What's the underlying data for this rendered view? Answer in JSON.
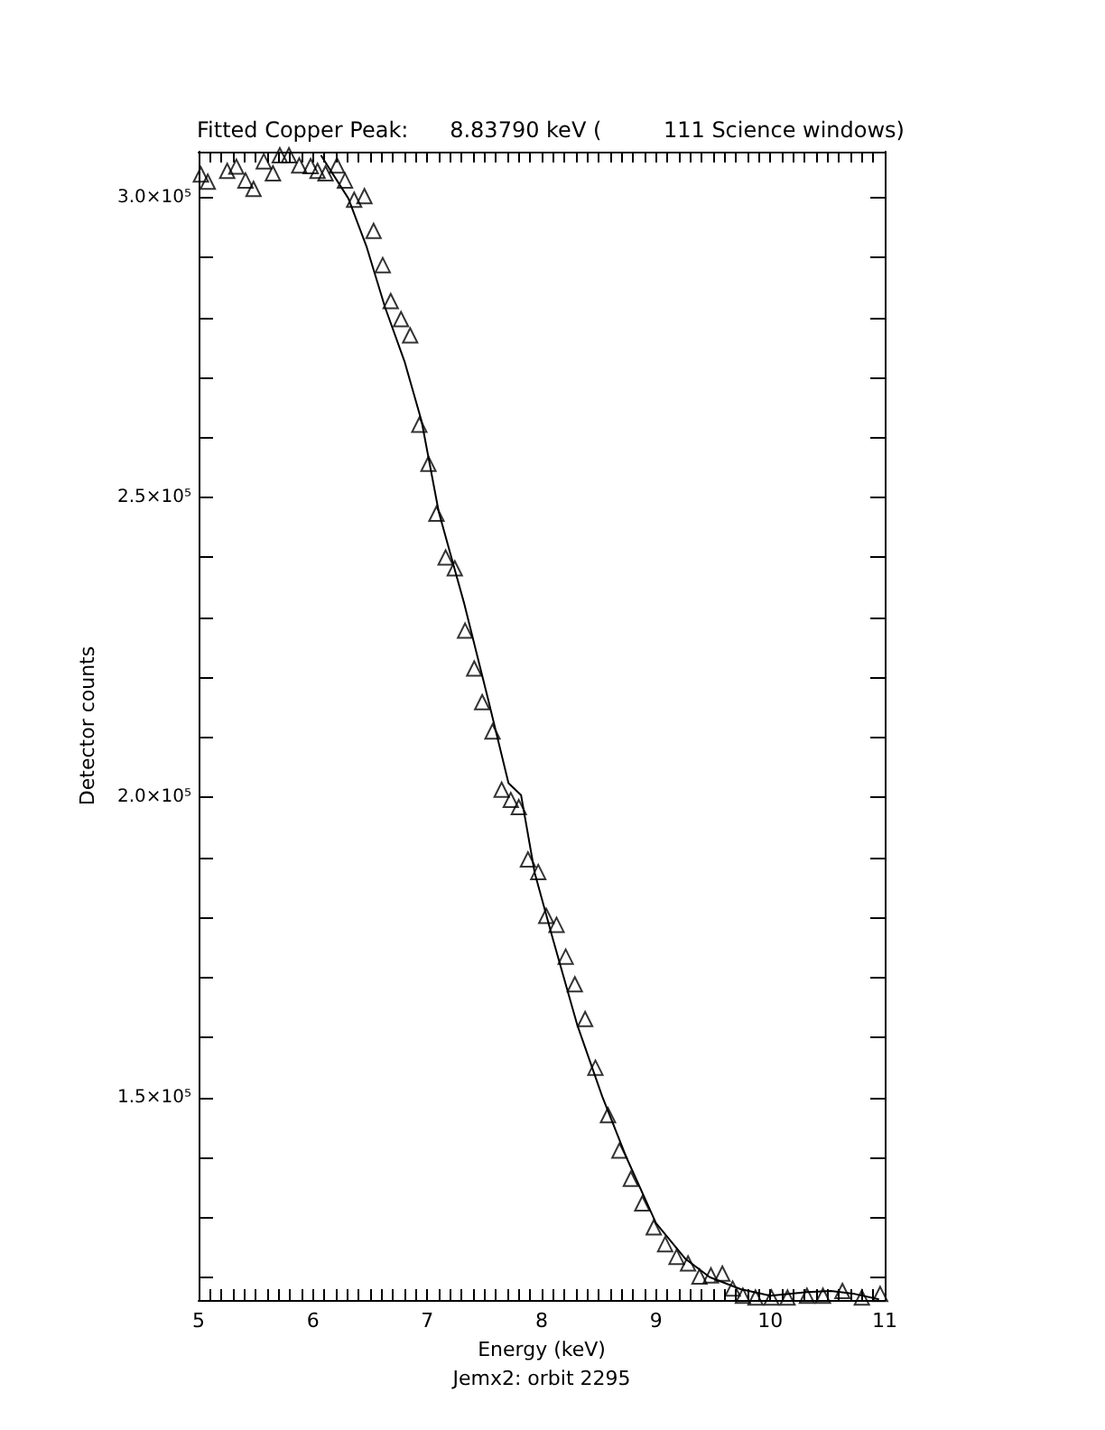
{
  "chart_data": {
    "type": "scatter",
    "title": "Fitted Copper Peak:      8.83790 keV (         111 Science windows)",
    "xlabel": "Energy (keV)",
    "ylabel": "Detector counts",
    "annotations": [
      "Jemx2: orbit 2295"
    ],
    "xlim": [
      5,
      11
    ],
    "ylim": [
      116300,
      307600
    ],
    "grid": false,
    "xticks": [
      5,
      {
        "value": 5.1,
        "label": null
      },
      {
        "value": 5.2,
        "label": null
      },
      {
        "value": 5.3,
        "label": null
      },
      {
        "value": 5.4,
        "label": null
      },
      {
        "value": 5.5,
        "label": null
      },
      {
        "value": 5.6,
        "label": null
      },
      {
        "value": 5.7,
        "label": null
      },
      {
        "value": 5.8,
        "label": null
      },
      {
        "value": 5.9,
        "label": null
      },
      6,
      {
        "value": 6.1,
        "label": null
      },
      {
        "value": 6.2,
        "label": null
      },
      {
        "value": 6.3,
        "label": null
      },
      {
        "value": 6.4,
        "label": null
      },
      {
        "value": 6.5,
        "label": null
      },
      {
        "value": 6.6,
        "label": null
      },
      {
        "value": 6.7,
        "label": null
      },
      {
        "value": 6.8,
        "label": null
      },
      {
        "value": 6.9,
        "label": null
      },
      7,
      {
        "value": 7.1,
        "label": null
      },
      {
        "value": 7.2,
        "label": null
      },
      {
        "value": 7.3,
        "label": null
      },
      {
        "value": 7.4,
        "label": null
      },
      {
        "value": 7.5,
        "label": null
      },
      {
        "value": 7.6,
        "label": null
      },
      {
        "value": 7.7,
        "label": null
      },
      {
        "value": 7.8,
        "label": null
      },
      {
        "value": 7.9,
        "label": null
      },
      8,
      {
        "value": 8.1,
        "label": null
      },
      {
        "value": 8.2,
        "label": null
      },
      {
        "value": 8.3,
        "label": null
      },
      {
        "value": 8.4,
        "label": null
      },
      {
        "value": 8.5,
        "label": null
      },
      {
        "value": 8.6,
        "label": null
      },
      {
        "value": 8.7,
        "label": null
      },
      {
        "value": 8.8,
        "label": null
      },
      {
        "value": 8.9,
        "label": null
      },
      9,
      {
        "value": 9.1,
        "label": null
      },
      {
        "value": 9.2,
        "label": null
      },
      {
        "value": 9.3,
        "label": null
      },
      {
        "value": 9.4,
        "label": null
      },
      {
        "value": 9.5,
        "label": null
      },
      {
        "value": 9.6,
        "label": null
      },
      {
        "value": 9.7,
        "label": null
      },
      {
        "value": 9.8,
        "label": null
      },
      {
        "value": 9.9,
        "label": null
      },
      10,
      {
        "value": 10.1,
        "label": null
      },
      {
        "value": 10.2,
        "label": null
      },
      {
        "value": 10.3,
        "label": null
      },
      {
        "value": 10.4,
        "label": null
      },
      {
        "value": 10.5,
        "label": null
      },
      {
        "value": 10.6,
        "label": null
      },
      {
        "value": 10.7,
        "label": null
      },
      {
        "value": 10.8,
        "label": null
      },
      {
        "value": 10.9,
        "label": null
      },
      11
    ],
    "yticks": [
      {
        "value": 120000,
        "label": null
      },
      {
        "value": 130000,
        "label": null
      },
      {
        "value": 140000,
        "label": null
      },
      {
        "value": 150000,
        "label": "1.5×10⁵"
      },
      {
        "value": 160000,
        "label": null
      },
      {
        "value": 170000,
        "label": null
      },
      {
        "value": 180000,
        "label": null
      },
      {
        "value": 190000,
        "label": null
      },
      {
        "value": 200000,
        "label": "2.0×10⁵"
      },
      {
        "value": 210000,
        "label": null
      },
      {
        "value": 220000,
        "label": null
      },
      {
        "value": 230000,
        "label": null
      },
      {
        "value": 240000,
        "label": null
      },
      {
        "value": 250000,
        "label": "2.5×10⁵"
      },
      {
        "value": 260000,
        "label": null
      },
      {
        "value": 270000,
        "label": null
      },
      {
        "value": 280000,
        "label": null
      },
      {
        "value": 290000,
        "label": null
      },
      {
        "value": 300000,
        "label": "3.0×10⁵"
      }
    ],
    "series": [
      {
        "marker": "triangle",
        "color": "#000000",
        "x": [
          5.02,
          5.08,
          5.25,
          5.33,
          5.41,
          5.48,
          5.57,
          5.65,
          5.71,
          5.79,
          5.88,
          5.98,
          6.04,
          6.11,
          6.21,
          6.28,
          6.36,
          6.45,
          6.53,
          6.61,
          6.68,
          6.77,
          6.85,
          6.93,
          7.01,
          7.08,
          7.16,
          7.24,
          7.33,
          7.41,
          7.48,
          7.57,
          7.65,
          7.73,
          7.8,
          7.88,
          7.97,
          8.04,
          8.13,
          8.21,
          8.29,
          8.38,
          8.47,
          8.58,
          8.68,
          8.78,
          8.88,
          8.98,
          9.08,
          9.18,
          9.28,
          9.38,
          9.48,
          9.58,
          9.67,
          9.76,
          9.87,
          10.01,
          10.15,
          10.32,
          10.46,
          10.63,
          10.8,
          10.96
        ],
        "values": [
          303800,
          302600,
          304400,
          305100,
          302800,
          301400,
          306000,
          304000,
          307000,
          307000,
          305300,
          305200,
          304400,
          304000,
          305300,
          302800,
          299600,
          300200,
          294400,
          288700,
          282700,
          279700,
          277000,
          262100,
          255600,
          247300,
          240000,
          238200,
          227800,
          221500,
          215900,
          211000,
          201300,
          199600,
          198400,
          189700,
          187600,
          180300,
          178800,
          173500,
          168900,
          163100,
          155000,
          147100,
          141200,
          136500,
          132400,
          128400,
          125600,
          123500,
          122400,
          120200,
          120400,
          120700,
          118200,
          117000,
          116700,
          116700,
          116700,
          117000,
          117000,
          117800,
          116700,
          117300
        ]
      },
      {
        "type": "line",
        "marker": "none",
        "line_style": "solid",
        "color": "#000000",
        "x": [
          6.07,
          6.31,
          6.47,
          6.63,
          6.8,
          6.95,
          7.1,
          7.32,
          7.53,
          7.71,
          7.82,
          7.94,
          8.1,
          8.31,
          8.53,
          8.74,
          9.0,
          9.26,
          9.47,
          9.74,
          10.0,
          10.32,
          10.53,
          10.74,
          10.95
        ],
        "values": [
          307000,
          299800,
          291700,
          281700,
          272700,
          262700,
          247600,
          232500,
          216500,
          202400,
          200400,
          187400,
          176300,
          162200,
          150200,
          140100,
          129100,
          123100,
          120100,
          118100,
          117000,
          117600,
          117800,
          117300,
          116400
        ]
      }
    ]
  }
}
